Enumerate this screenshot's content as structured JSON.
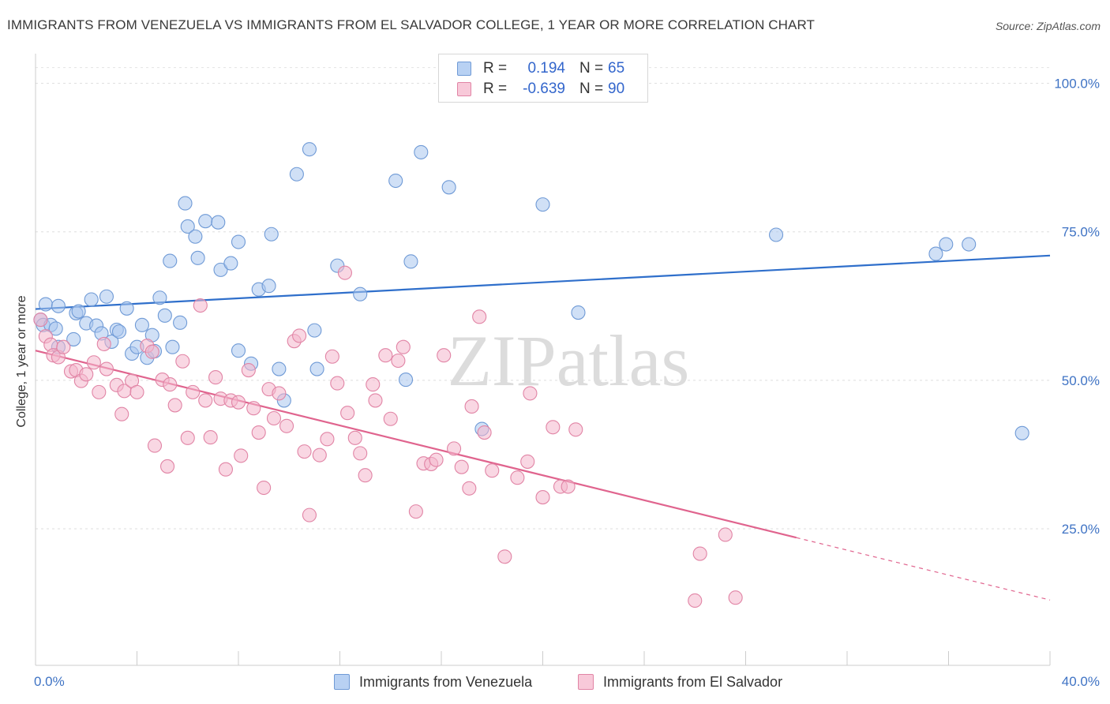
{
  "chart_data": {
    "type": "scatter",
    "title": "IMMIGRANTS FROM VENEZUELA VS IMMIGRANTS FROM EL SALVADOR COLLEGE, 1 YEAR OR MORE CORRELATION CHART",
    "source": "Source: ZipAtlas.com",
    "watermark": "ZIPatlas",
    "ylabel": "College, 1 year or more",
    "xlim": [
      0,
      40
    ],
    "ylim": [
      2,
      105
    ],
    "x_tick_labels": [
      "0.0%",
      "40.0%"
    ],
    "y_ticks": [
      {
        "value": 25,
        "label": "25.0%"
      },
      {
        "value": 50,
        "label": "50.0%"
      },
      {
        "value": 75,
        "label": "75.0%"
      },
      {
        "value": 100,
        "label": "100.0%"
      }
    ],
    "grid": true,
    "legend_stats": [
      {
        "r_label": "R =",
        "r_value": "0.194",
        "n_label": "N =",
        "n_value": "65"
      },
      {
        "r_label": "R =",
        "r_value": "-0.639",
        "n_label": "N =",
        "n_value": "90"
      }
    ],
    "series": [
      {
        "name": "Immigrants from Venezuela",
        "color": "#a9c6ef",
        "edge_color": "#6f9ad6",
        "line_color": "#2f6fcb",
        "trend": {
          "x": [
            0,
            40
          ],
          "y": [
            62.0,
            71.0
          ],
          "dashed_from": null
        },
        "points": [
          [
            0.2,
            60.2
          ],
          [
            0.3,
            59.3
          ],
          [
            0.4,
            62.8
          ],
          [
            0.6,
            59.3
          ],
          [
            0.8,
            58.7
          ],
          [
            0.9,
            62.5
          ],
          [
            0.9,
            55.6
          ],
          [
            1.5,
            56.9
          ],
          [
            1.6,
            61.3
          ],
          [
            1.7,
            61.6
          ],
          [
            2.0,
            59.6
          ],
          [
            2.2,
            63.6
          ],
          [
            2.4,
            59.2
          ],
          [
            2.6,
            57.9
          ],
          [
            2.8,
            64.1
          ],
          [
            3.0,
            56.5
          ],
          [
            3.2,
            58.5
          ],
          [
            3.3,
            58.2
          ],
          [
            3.6,
            62.1
          ],
          [
            3.8,
            54.5
          ],
          [
            4.0,
            55.6
          ],
          [
            4.2,
            59.3
          ],
          [
            4.4,
            53.8
          ],
          [
            4.6,
            57.6
          ],
          [
            4.7,
            54.9
          ],
          [
            4.9,
            63.9
          ],
          [
            5.1,
            60.9
          ],
          [
            5.3,
            70.1
          ],
          [
            5.4,
            55.6
          ],
          [
            5.7,
            59.7
          ],
          [
            5.9,
            79.8
          ],
          [
            6.0,
            75.9
          ],
          [
            6.3,
            74.2
          ],
          [
            6.4,
            70.6
          ],
          [
            6.7,
            76.8
          ],
          [
            7.2,
            76.6
          ],
          [
            7.3,
            68.6
          ],
          [
            7.7,
            69.7
          ],
          [
            8.0,
            73.3
          ],
          [
            8.0,
            55.0
          ],
          [
            8.5,
            52.8
          ],
          [
            8.8,
            65.3
          ],
          [
            9.2,
            65.9
          ],
          [
            9.3,
            74.6
          ],
          [
            9.6,
            51.9
          ],
          [
            9.8,
            46.6
          ],
          [
            10.3,
            84.7
          ],
          [
            10.8,
            88.9
          ],
          [
            11.0,
            58.4
          ],
          [
            11.1,
            51.9
          ],
          [
            11.9,
            69.3
          ],
          [
            12.8,
            64.5
          ],
          [
            14.2,
            83.6
          ],
          [
            14.6,
            50.1
          ],
          [
            14.8,
            70.0
          ],
          [
            15.2,
            88.4
          ],
          [
            16.3,
            82.5
          ],
          [
            17.6,
            41.8
          ],
          [
            20.0,
            79.6
          ],
          [
            21.4,
            61.4
          ],
          [
            29.2,
            74.5
          ],
          [
            35.5,
            71.3
          ],
          [
            35.9,
            72.9
          ],
          [
            36.8,
            72.9
          ],
          [
            38.9,
            41.1
          ]
        ]
      },
      {
        "name": "Immigrants from El Salvador",
        "color": "#f4b7cc",
        "edge_color": "#e184a5",
        "line_color": "#e0648e",
        "trend": {
          "x": [
            0,
            40
          ],
          "y": [
            55.0,
            13.0
          ],
          "dashed_from": 30.0
        },
        "points": [
          [
            0.2,
            60.2
          ],
          [
            0.4,
            57.4
          ],
          [
            0.6,
            56.0
          ],
          [
            0.7,
            54.2
          ],
          [
            0.9,
            53.9
          ],
          [
            1.1,
            55.6
          ],
          [
            1.4,
            51.5
          ],
          [
            1.6,
            51.7
          ],
          [
            1.8,
            49.9
          ],
          [
            2.0,
            51.0
          ],
          [
            2.3,
            53.0
          ],
          [
            2.5,
            48.0
          ],
          [
            2.7,
            56.1
          ],
          [
            2.8,
            51.9
          ],
          [
            3.2,
            49.2
          ],
          [
            3.4,
            44.3
          ],
          [
            3.5,
            48.2
          ],
          [
            3.8,
            49.9
          ],
          [
            4.0,
            48.0
          ],
          [
            4.4,
            55.8
          ],
          [
            4.6,
            54.8
          ],
          [
            4.7,
            39.0
          ],
          [
            5.0,
            50.1
          ],
          [
            5.2,
            35.5
          ],
          [
            5.3,
            49.3
          ],
          [
            5.5,
            45.8
          ],
          [
            5.8,
            53.2
          ],
          [
            6.0,
            40.3
          ],
          [
            6.2,
            48.0
          ],
          [
            6.5,
            62.6
          ],
          [
            6.7,
            46.6
          ],
          [
            6.9,
            40.4
          ],
          [
            7.1,
            50.5
          ],
          [
            7.3,
            46.9
          ],
          [
            7.5,
            35.0
          ],
          [
            7.7,
            46.6
          ],
          [
            8.0,
            46.3
          ],
          [
            8.1,
            37.3
          ],
          [
            8.4,
            51.7
          ],
          [
            8.6,
            45.3
          ],
          [
            8.8,
            41.2
          ],
          [
            9.0,
            31.9
          ],
          [
            9.2,
            48.5
          ],
          [
            9.4,
            43.6
          ],
          [
            9.6,
            47.8
          ],
          [
            9.9,
            42.3
          ],
          [
            10.2,
            56.6
          ],
          [
            10.4,
            57.5
          ],
          [
            10.6,
            38.0
          ],
          [
            10.8,
            27.3
          ],
          [
            11.2,
            37.4
          ],
          [
            11.5,
            40.1
          ],
          [
            11.7,
            54.0
          ],
          [
            11.9,
            49.5
          ],
          [
            12.2,
            68.1
          ],
          [
            12.3,
            44.5
          ],
          [
            12.6,
            40.3
          ],
          [
            12.8,
            37.7
          ],
          [
            13.0,
            34.0
          ],
          [
            13.3,
            49.3
          ],
          [
            13.4,
            46.6
          ],
          [
            13.8,
            54.2
          ],
          [
            14.0,
            43.5
          ],
          [
            14.3,
            53.3
          ],
          [
            14.5,
            55.6
          ],
          [
            15.0,
            27.9
          ],
          [
            15.3,
            36.0
          ],
          [
            15.6,
            35.9
          ],
          [
            15.8,
            36.6
          ],
          [
            16.1,
            54.2
          ],
          [
            16.5,
            38.5
          ],
          [
            16.8,
            35.4
          ],
          [
            17.1,
            31.8
          ],
          [
            17.2,
            45.6
          ],
          [
            17.5,
            60.7
          ],
          [
            17.7,
            41.2
          ],
          [
            18.0,
            34.8
          ],
          [
            18.5,
            20.3
          ],
          [
            19.0,
            33.6
          ],
          [
            19.4,
            36.3
          ],
          [
            19.5,
            47.8
          ],
          [
            20.0,
            30.3
          ],
          [
            20.4,
            42.1
          ],
          [
            20.7,
            32.1
          ],
          [
            21.0,
            32.1
          ],
          [
            21.3,
            41.7
          ],
          [
            26.0,
            12.9
          ],
          [
            26.2,
            20.8
          ],
          [
            27.2,
            24.0
          ],
          [
            27.6,
            13.4
          ]
        ]
      }
    ]
  },
  "legend_bottom": [
    {
      "label": "Immigrants from Venezuela"
    },
    {
      "label": "Immigrants from El Salvador"
    }
  ]
}
